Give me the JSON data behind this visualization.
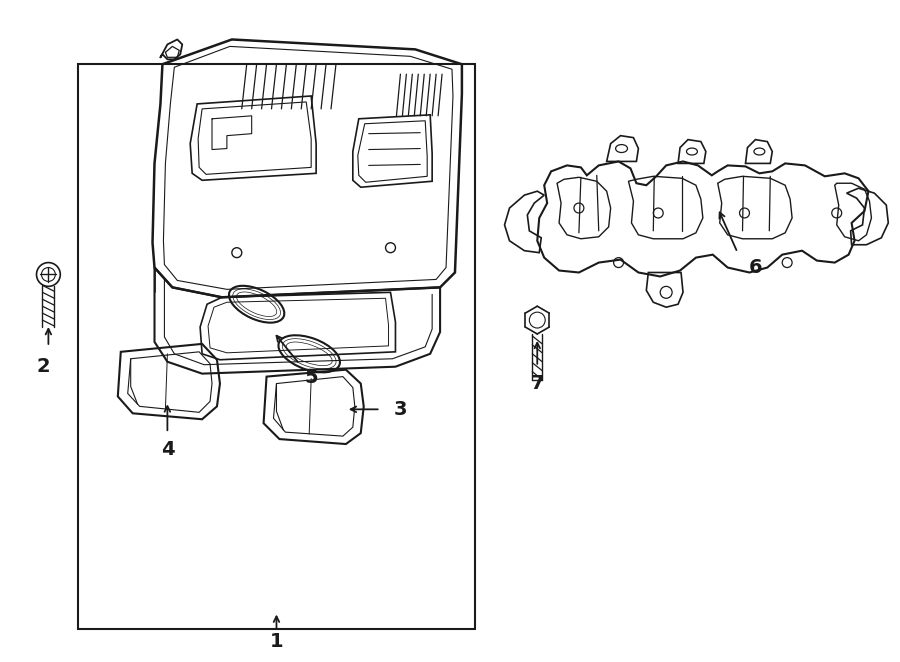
{
  "bg_color": "#ffffff",
  "line_color": "#1a1a1a",
  "label_color": "#000000",
  "fig_width": 9.0,
  "fig_height": 6.62,
  "dpi": 100
}
